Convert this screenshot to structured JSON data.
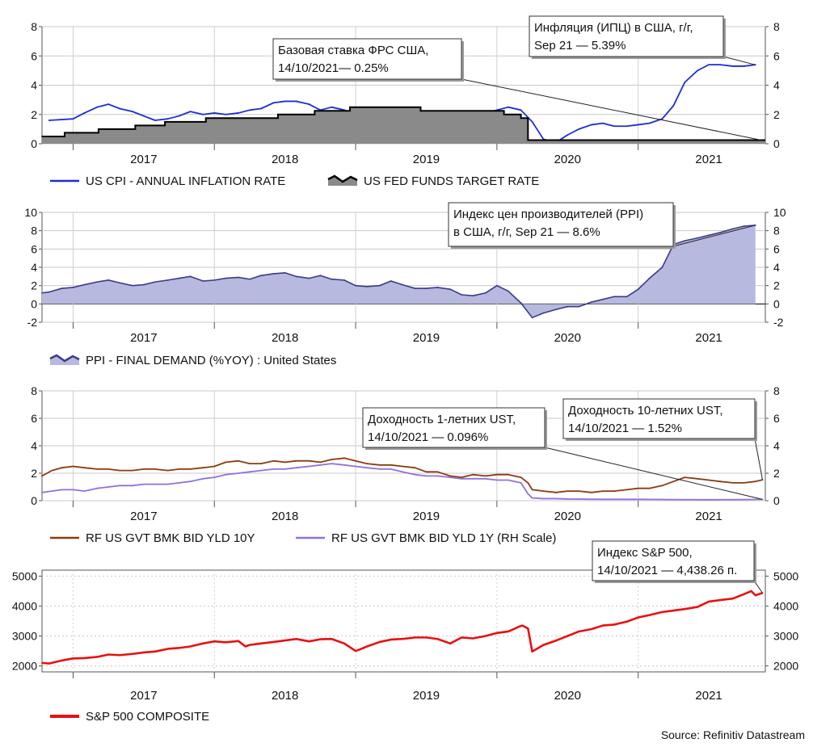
{
  "source": "Source: Refinitiv Datastream",
  "chart_data": [
    {
      "type": "line",
      "id": "cpi",
      "years": [
        "2017",
        "2018",
        "2019",
        "2020",
        "2021"
      ],
      "ylim": [
        0,
        8
      ],
      "yticks": [
        "0",
        "2",
        "4",
        "6",
        "8"
      ],
      "y2ticks": [
        "0",
        "2",
        "4",
        "6",
        "8"
      ],
      "series": [
        {
          "name": "US CPI - ANNUAL INFLATION RATE",
          "style": "line",
          "color": "#1d2bd6",
          "x": [
            2016.33,
            2016.5,
            2016.58,
            2016.67,
            2016.75,
            2016.83,
            2016.92,
            2017.0,
            2017.08,
            2017.17,
            2017.25,
            2017.33,
            2017.42,
            2017.5,
            2017.58,
            2017.67,
            2017.75,
            2017.83,
            2017.92,
            2018.0,
            2018.08,
            2018.17,
            2018.25,
            2018.33,
            2018.42,
            2018.5,
            2018.58,
            2018.67,
            2018.75,
            2018.83,
            2018.92,
            2019.0,
            2019.08,
            2019.17,
            2019.25,
            2019.33,
            2019.42,
            2019.5,
            2019.58,
            2019.67,
            2019.75,
            2019.83,
            2019.92,
            2020.0,
            2020.08,
            2020.17,
            2020.25,
            2020.33,
            2020.42,
            2020.5,
            2020.58,
            2020.67,
            2020.75,
            2020.83,
            2020.92,
            2021.0,
            2021.08,
            2021.17,
            2021.25,
            2021.33
          ],
          "values": [
            1.6,
            1.7,
            2.1,
            2.5,
            2.7,
            2.4,
            2.2,
            1.9,
            1.6,
            1.7,
            1.9,
            2.2,
            2.0,
            2.1,
            2.0,
            2.1,
            2.3,
            2.4,
            2.8,
            2.9,
            2.9,
            2.7,
            2.3,
            2.5,
            2.3,
            2.0,
            1.6,
            1.5,
            1.7,
            1.9,
            2.0,
            1.8,
            1.7,
            1.7,
            1.8,
            1.8,
            2.1,
            2.3,
            2.5,
            2.3,
            1.5,
            0.3,
            0.1,
            0.6,
            1.0,
            1.3,
            1.4,
            1.2,
            1.2,
            1.3,
            1.4,
            1.7,
            2.6,
            4.2,
            5.0,
            5.4,
            5.4,
            5.3,
            5.3,
            5.4
          ]
        },
        {
          "name": "US FED FUNDS TARGET RATE",
          "style": "step-area",
          "color": "#000000",
          "fill": "#8a8a8a",
          "x": [
            2016.28,
            2016.44,
            2016.68,
            2016.94,
            2017.15,
            2017.44,
            2017.95,
            2018.21,
            2018.46,
            2018.71,
            2018.96,
            2019.55,
            2019.67,
            2019.72,
            2019.78,
            2021.38
          ],
          "values": [
            0.5,
            0.75,
            1.0,
            1.25,
            1.5,
            1.75,
            2.0,
            2.25,
            2.5,
            2.5,
            2.25,
            2.0,
            1.75,
            0.25,
            0.25,
            0.25
          ]
        }
      ],
      "legend": [
        "US CPI - ANNUAL INFLATION RATE",
        "US FED FUNDS TARGET RATE"
      ],
      "annotations": [
        {
          "lines": [
            "Базовая ставка ФРС США,",
            "14/10/2021— 0.25%"
          ],
          "point": [
            2021.37,
            0.25
          ],
          "axis": "left"
        },
        {
          "lines": [
            "Инфляция (ИПЦ) в США, г/г,",
            "Sep 21 — 5.39%"
          ],
          "point": [
            2021.33,
            5.39
          ],
          "axis": "left"
        }
      ]
    },
    {
      "type": "area",
      "id": "ppi",
      "years": [
        "2017",
        "2018",
        "2019",
        "2020",
        "2021"
      ],
      "ylim": [
        -2,
        10
      ],
      "yticks": [
        "-2",
        "0",
        "2",
        "4",
        "6",
        "8",
        "10"
      ],
      "y2ticks": [
        "-2",
        "0",
        "2",
        "4",
        "6",
        "8",
        "10"
      ],
      "series": [
        {
          "name": "PPI - FINAL DEMAND (%YOY) : United States",
          "style": "area",
          "color": "#3a3a8c",
          "fill": "#b7b9de",
          "x": [
            2016.28,
            2016.33,
            2016.42,
            2016.5,
            2016.58,
            2016.67,
            2016.75,
            2016.83,
            2016.92,
            2017.0,
            2017.08,
            2017.17,
            2017.25,
            2017.33,
            2017.42,
            2017.5,
            2017.58,
            2017.67,
            2017.75,
            2017.83,
            2017.92,
            2018.0,
            2018.08,
            2018.17,
            2018.25,
            2018.33,
            2018.42,
            2018.5,
            2018.58,
            2018.67,
            2018.75,
            2018.83,
            2018.92,
            2019.0,
            2019.08,
            2019.17,
            2019.25,
            2019.33,
            2019.42,
            2019.5,
            2019.58,
            2019.67,
            2019.75,
            2019.83,
            2019.92,
            2020.0,
            2020.08,
            2020.17,
            2020.25,
            2020.33,
            2020.42,
            2020.5,
            2020.58,
            2020.67,
            2020.75,
            2020.83,
            2020.92,
            2021.0,
            2021.08,
            2021.17,
            2021.25,
            2021.33
          ],
          "values": [
            1.2,
            1.3,
            1.7,
            1.8,
            2.1,
            2.4,
            2.6,
            2.3,
            2.0,
            2.1,
            2.4,
            2.6,
            2.8,
            3.0,
            2.5,
            2.6,
            2.8,
            2.9,
            2.7,
            3.1,
            3.3,
            3.4,
            3.0,
            2.8,
            3.1,
            2.7,
            2.6,
            2.0,
            1.9,
            2.0,
            2.5,
            2.1,
            1.7,
            1.7,
            1.8,
            1.6,
            1.0,
            0.9,
            1.2,
            2.0,
            1.4,
            0.1,
            -1.5,
            -1.0,
            -0.6,
            -0.3,
            -0.3,
            0.2,
            0.5,
            0.8,
            0.8,
            1.6,
            2.8,
            4.0,
            6.5,
            6.9,
            7.2,
            7.5,
            7.8,
            8.2,
            8.5,
            8.6
          ]
        }
      ],
      "legend": [
        "PPI - FINAL DEMAND (%YOY) : United States"
      ],
      "annotations": [
        {
          "lines": [
            "Индекс цен производителей (PPI)",
            "в США, г/г, Sep 21 — 8.6%"
          ],
          "point": [
            2021.33,
            8.6
          ],
          "axis": "left"
        }
      ]
    },
    {
      "type": "line",
      "id": "yields",
      "years": [
        "2017",
        "2018",
        "2019",
        "2020",
        "2021"
      ],
      "ylim": [
        0,
        8
      ],
      "yticks": [
        "0",
        "2",
        "4",
        "6",
        "8"
      ],
      "y2ticks": [
        "0",
        "2",
        "4",
        "6",
        "8"
      ],
      "series": [
        {
          "name": "RF US GVT BMK BID YLD 10Y",
          "style": "line",
          "color": "#8b3a0e",
          "x": [
            2016.28,
            2016.35,
            2016.42,
            2016.5,
            2016.58,
            2016.67,
            2016.75,
            2016.83,
            2016.92,
            2017.0,
            2017.08,
            2017.17,
            2017.25,
            2017.33,
            2017.42,
            2017.5,
            2017.58,
            2017.67,
            2017.75,
            2017.83,
            2017.92,
            2018.0,
            2018.08,
            2018.17,
            2018.25,
            2018.33,
            2018.42,
            2018.5,
            2018.58,
            2018.67,
            2018.75,
            2018.83,
            2018.92,
            2019.0,
            2019.08,
            2019.17,
            2019.25,
            2019.33,
            2019.42,
            2019.5,
            2019.58,
            2019.67,
            2019.72,
            2019.75,
            2019.83,
            2019.92,
            2020.0,
            2020.08,
            2020.17,
            2020.25,
            2020.33,
            2020.42,
            2020.5,
            2020.58,
            2020.67,
            2020.75,
            2020.83,
            2020.92,
            2021.0,
            2021.08,
            2021.17,
            2021.25,
            2021.33,
            2021.38
          ],
          "values": [
            1.8,
            2.2,
            2.4,
            2.5,
            2.4,
            2.3,
            2.3,
            2.2,
            2.2,
            2.3,
            2.3,
            2.2,
            2.3,
            2.3,
            2.4,
            2.5,
            2.8,
            2.9,
            2.7,
            2.7,
            2.9,
            2.8,
            2.9,
            2.9,
            2.8,
            3.0,
            3.1,
            2.9,
            2.7,
            2.6,
            2.6,
            2.5,
            2.4,
            2.1,
            2.1,
            1.8,
            1.7,
            1.9,
            1.8,
            1.9,
            1.9,
            1.7,
            1.3,
            0.8,
            0.7,
            0.6,
            0.7,
            0.7,
            0.6,
            0.7,
            0.7,
            0.8,
            0.9,
            0.9,
            1.1,
            1.4,
            1.7,
            1.6,
            1.5,
            1.4,
            1.3,
            1.3,
            1.4,
            1.52
          ]
        },
        {
          "name": "RF US GVT BMK BID YLD 1Y (RH Scale)",
          "style": "line",
          "color": "#9370db",
          "x": [
            2016.28,
            2016.35,
            2016.42,
            2016.5,
            2016.58,
            2016.67,
            2016.75,
            2016.83,
            2016.92,
            2017.0,
            2017.08,
            2017.17,
            2017.25,
            2017.33,
            2017.42,
            2017.5,
            2017.58,
            2017.67,
            2017.75,
            2017.83,
            2017.92,
            2018.0,
            2018.08,
            2018.17,
            2018.25,
            2018.33,
            2018.42,
            2018.5,
            2018.58,
            2018.67,
            2018.75,
            2018.83,
            2018.92,
            2019.0,
            2019.08,
            2019.17,
            2019.25,
            2019.33,
            2019.42,
            2019.5,
            2019.58,
            2019.67,
            2019.72,
            2019.75,
            2019.83,
            2019.92,
            2020.0,
            2020.25,
            2020.5,
            2020.75,
            2021.0,
            2021.25,
            2021.38
          ],
          "values": [
            0.6,
            0.7,
            0.8,
            0.8,
            0.7,
            0.9,
            1.0,
            1.1,
            1.1,
            1.2,
            1.2,
            1.2,
            1.3,
            1.4,
            1.6,
            1.7,
            1.9,
            2.0,
            2.1,
            2.2,
            2.3,
            2.3,
            2.4,
            2.5,
            2.6,
            2.7,
            2.6,
            2.5,
            2.4,
            2.3,
            2.3,
            2.1,
            1.9,
            1.8,
            1.8,
            1.7,
            1.6,
            1.6,
            1.6,
            1.5,
            1.5,
            1.3,
            0.5,
            0.2,
            0.15,
            0.15,
            0.12,
            0.1,
            0.1,
            0.08,
            0.07,
            0.08,
            0.096
          ]
        }
      ],
      "legend": [
        "RF US GVT BMK BID YLD 10Y",
        "RF US GVT BMK BID YLD 1Y (RH Scale)"
      ],
      "annotations": [
        {
          "lines": [
            "Доходность 1-летних UST,",
            "14/10/2021 — 0.096%"
          ],
          "point": [
            2021.38,
            0.096
          ],
          "axis": "left"
        },
        {
          "lines": [
            "Доходность 10-летних UST,",
            "14/10/2021 — 1.52%"
          ],
          "point": [
            2021.38,
            1.52
          ],
          "axis": "left"
        }
      ]
    },
    {
      "type": "line",
      "id": "sp500",
      "years": [
        "2017",
        "2018",
        "2019",
        "2020",
        "2021"
      ],
      "ylim": [
        1800,
        5200
      ],
      "ytickvals": [
        2000,
        3000,
        4000,
        5000
      ],
      "yticks": [
        "2000",
        "3000",
        "4000",
        "5000"
      ],
      "y2ticks": [
        "2000",
        "3000",
        "4000",
        "5000"
      ],
      "series": [
        {
          "name": "S&P 500 COMPOSITE",
          "style": "line",
          "color": "#e81010",
          "x": [
            2016.28,
            2016.33,
            2016.42,
            2016.5,
            2016.58,
            2016.67,
            2016.75,
            2016.83,
            2016.92,
            2017.0,
            2017.08,
            2017.17,
            2017.25,
            2017.33,
            2017.42,
            2017.5,
            2017.58,
            2017.67,
            2017.72,
            2017.75,
            2017.83,
            2017.92,
            2018.0,
            2018.08,
            2018.17,
            2018.25,
            2018.33,
            2018.42,
            2018.5,
            2018.53,
            2018.58,
            2018.67,
            2018.75,
            2018.83,
            2018.92,
            2019.0,
            2019.08,
            2019.17,
            2019.25,
            2019.33,
            2019.42,
            2019.5,
            2019.58,
            2019.62,
            2019.65,
            2019.68,
            2019.72,
            2019.75,
            2019.83,
            2019.92,
            2020.0,
            2020.08,
            2020.17,
            2020.25,
            2020.33,
            2020.42,
            2020.5,
            2020.58,
            2020.67,
            2020.75,
            2020.83,
            2020.92,
            2021.0,
            2021.08,
            2021.17,
            2021.25,
            2021.3,
            2021.33,
            2021.38
          ],
          "values": [
            2100,
            2080,
            2180,
            2250,
            2260,
            2300,
            2380,
            2360,
            2400,
            2450,
            2480,
            2570,
            2600,
            2650,
            2750,
            2820,
            2790,
            2830,
            2650,
            2700,
            2750,
            2800,
            2850,
            2900,
            2820,
            2890,
            2900,
            2750,
            2500,
            2550,
            2650,
            2800,
            2880,
            2900,
            2950,
            2950,
            2900,
            2750,
            2950,
            2920,
            3000,
            3100,
            3150,
            3230,
            3300,
            3350,
            3250,
            2480,
            2700,
            2850,
            3000,
            3150,
            3230,
            3350,
            3380,
            3480,
            3620,
            3700,
            3800,
            3850,
            3900,
            3970,
            4150,
            4200,
            4250,
            4400,
            4500,
            4360,
            4438
          ]
        }
      ],
      "legend": [
        "S&P 500 COMPOSITE"
      ],
      "annotations": [
        {
          "lines": [
            "Индекс S&P 500,",
            "14/10/2021 — 4,438.26 п."
          ],
          "point": [
            2021.38,
            4438.26
          ],
          "axis": "left"
        }
      ]
    }
  ]
}
